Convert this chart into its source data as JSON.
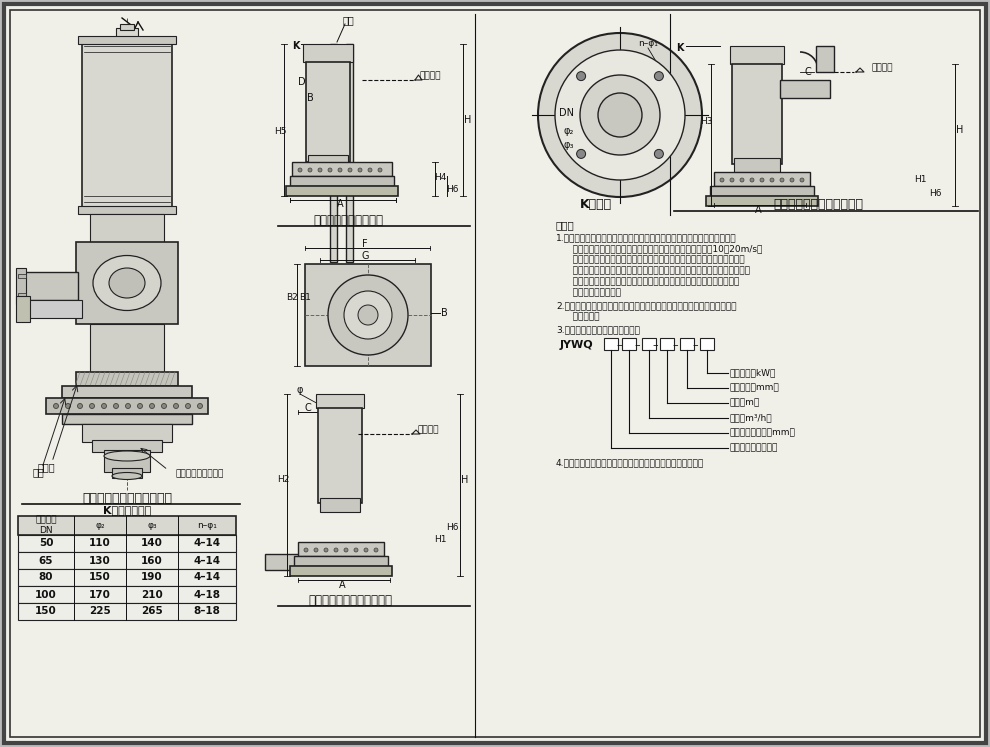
{
  "bg_color": "#e8e8e8",
  "line_color": "#222222",
  "pump_title": "自动搔匀潜污泵构造示意图",
  "table_title": "K向法兰尺寸表",
  "table_headers": [
    "出口直径\nDN",
    "φ₂",
    "φ₃",
    "n–φ₁"
  ],
  "table_rows": [
    [
      "50",
      "110",
      "140",
      "4–14"
    ],
    [
      "65",
      "130",
      "160",
      "4–14"
    ],
    [
      "80",
      "150",
      "190",
      "4–14"
    ],
    [
      "100",
      "170",
      "210",
      "4–18"
    ],
    [
      "150",
      "225",
      "265",
      "8–18"
    ]
  ],
  "fixed_title": "固定自藔式安装外形图",
  "flexible_title": "软管连接移动式安装外形图",
  "hard_title": "硬管连接固定式安装外形图",
  "k_title": "K向放大",
  "label_guide": "导轨",
  "label_min_water": "最低水位",
  "label_base": "底板",
  "label_stirrer": "搔匀头组合（组件）",
  "label_spiral": "回螺导",
  "note_title": "说明：",
  "note1a": "1.自动搔匀潜水排污泵系在普通型潜水排污泵的基础上设计有一个特殊的引",
  "note1b": "   水装置，利用泵腔中的压力水流，随着电机的高速旋转，以10～20m/s的",
  "note1c": "   旋流速度冲洗污水池（集水坑）底部，将沉淤物搔匀搔散后随水流排出，",
  "note1d": "   防止污水池（集水坑）沉淤物堆积固化。适用于床房含油废水及含有粪便的",
  "note1e": "   生活污水、含泥沙量较多的地下汽车库废水等沉淤物较多，停留时间较",
  "note1f": "   长的污、废水抽升。",
  "note2a": "2.该泵泵体材质有铸铁和不锈钙两种，若用于抽升腐蚀性液体时，应选用不",
  "note2b": "   锈钙材质。",
  "note3": "3.自动搔匀潜水排污泵型号意义：",
  "note4": "4.本页根据上海熊猫机械（集团）有限公司提供的资料编制。",
  "model_label": "JYWQ",
  "model_items": [
    "电机功率（kW）",
    "搔匀直径（mm）",
    "扬程（m）",
    "流量（m³/h）",
    "排出口公称直径（mm）",
    "自动搔匀潜水排污泵"
  ]
}
